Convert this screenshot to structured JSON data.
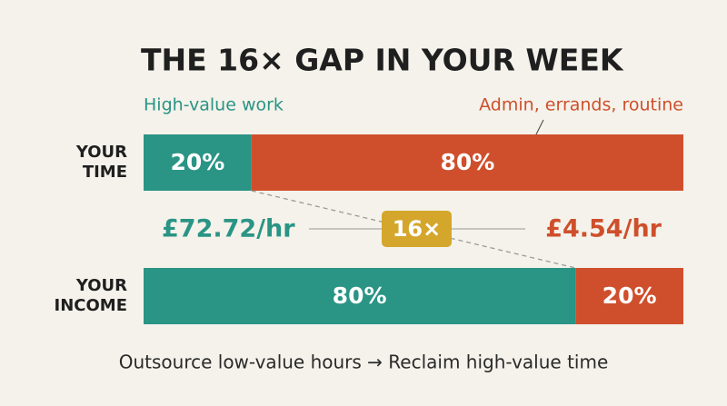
{
  "chart_data": {
    "type": "stacked_bar",
    "orientation": "horizontal",
    "title": "THE 16× GAP IN YOUR WEEK",
    "categories": [
      "YOUR TIME",
      "YOUR INCOME"
    ],
    "xlim": [
      0,
      100
    ],
    "series": [
      {
        "name": "High-value work",
        "color": "#2a9485",
        "values": [
          20,
          80
        ],
        "value_labels": [
          "20%",
          "80%"
        ]
      },
      {
        "name": "Admin, errands, routine",
        "color": "#cf4f2c",
        "values": [
          80,
          20
        ],
        "value_labels": [
          "80%",
          "20%"
        ]
      }
    ],
    "annotations": {
      "high_rate": "£72.72/hr",
      "gap": "16×",
      "low_rate": "£4.54/hr",
      "footer": "Outsource low-value hours → Reclaim high-value time"
    },
    "gap_color": "#d4a72c"
  }
}
